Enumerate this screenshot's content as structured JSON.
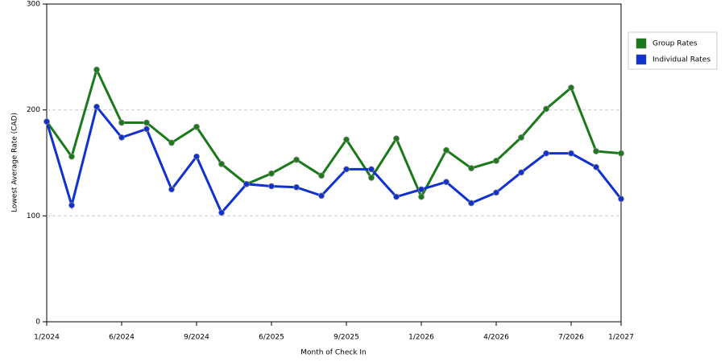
{
  "chart_data": {
    "type": "line",
    "categories": [
      "1/2024",
      null,
      null,
      "6/2024",
      null,
      null,
      "9/2024",
      null,
      null,
      "6/2025",
      null,
      null,
      "9/2025",
      null,
      null,
      "1/2026",
      null,
      null,
      "4/2026",
      null,
      null,
      "7/2026",
      null,
      "1/2027"
    ],
    "series": [
      {
        "name": "Group Rates",
        "color": "#1a7a1a",
        "values": [
          189,
          156,
          238,
          188,
          188,
          169,
          184,
          149,
          130,
          140,
          153,
          138,
          172,
          136,
          173,
          118,
          162,
          145,
          152,
          174,
          201,
          221,
          161,
          159
        ]
      },
      {
        "name": "Individual Rates",
        "color": "#1030d0",
        "values": [
          189,
          110,
          203,
          174,
          182,
          125,
          156,
          103,
          130,
          128,
          127,
          119,
          144,
          144,
          118,
          125,
          132,
          112,
          122,
          141,
          159,
          159,
          146,
          116
        ]
      }
    ],
    "xlabel": "Month of Check In",
    "ylabel": "Lowest Average Rate (CAD)",
    "ylim": [
      0,
      300
    ],
    "yticks": [
      0,
      100,
      200,
      300
    ],
    "grid": true
  }
}
